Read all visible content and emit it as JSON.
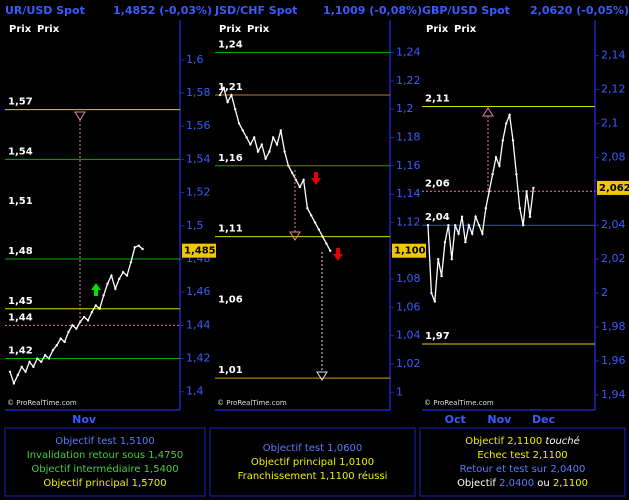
{
  "chart_data": [
    {
      "type": "line",
      "title": "UR/USD Spot",
      "subtitle": "1,4852 (-0,03%)",
      "col_labels": [
        "Prix",
        "Prix"
      ],
      "watermark": "© ProRealTime.com",
      "categories": [
        null,
        null,
        null,
        null,
        null,
        null,
        null,
        null,
        null,
        null,
        null,
        null,
        null,
        null,
        null,
        null,
        null,
        null,
        null,
        "Nov",
        null,
        null,
        null,
        null,
        null,
        null,
        null,
        null,
        null,
        null,
        null,
        null,
        null,
        null,
        null
      ],
      "series": [
        {
          "color": "#ffffff",
          "values": [
            1.412,
            1.405,
            1.41,
            1.415,
            1.412,
            1.418,
            1.415,
            1.42,
            1.418,
            1.422,
            1.42,
            1.425,
            1.428,
            1.432,
            1.43,
            1.436,
            1.44,
            1.438,
            1.442,
            1.445,
            1.443,
            1.448,
            1.452,
            1.45,
            1.458,
            1.465,
            1.47,
            1.462,
            1.468,
            1.472,
            1.47,
            1.478,
            1.487,
            1.488,
            1.486
          ]
        }
      ],
      "ylim": [
        1.392,
        1.624
      ],
      "yticks": [
        {
          "value": 1.4,
          "label": "1,4"
        },
        {
          "value": 1.42,
          "label": "1,42"
        },
        {
          "value": 1.44,
          "label": "1,44"
        },
        {
          "value": 1.46,
          "label": "1,46"
        },
        {
          "value": 1.48,
          "label": "1,48"
        },
        {
          "value": 1.5,
          "label": "1,5"
        },
        {
          "value": 1.52,
          "label": "1,52"
        },
        {
          "value": 1.54,
          "label": "1,54"
        },
        {
          "value": 1.56,
          "label": "1,56"
        },
        {
          "value": 1.58,
          "label": "1,58"
        },
        {
          "value": 1.6,
          "label": "1,6"
        }
      ],
      "levels": [
        {
          "value": 1.57,
          "label": "1,57",
          "color": "#d8d800"
        },
        {
          "value": 1.54,
          "label": "1,54",
          "color": "#00b000"
        },
        {
          "value": 1.51,
          "label": "1,51"
        },
        {
          "value": 1.48,
          "label": "1,48",
          "color": "#00b000"
        },
        {
          "value": 1.45,
          "label": "1,45",
          "color": "#d8d800"
        },
        {
          "value": 1.44,
          "label": "1,44",
          "color": "#e080b0",
          "dash": true
        },
        {
          "value": 1.42,
          "label": "1,42",
          "color": "#00b000"
        }
      ],
      "last": {
        "value": 1.485,
        "label": "1,485"
      },
      "notes": [
        [
          {
            "text": "Objectif test 1,5100",
            "color": "#5a7aff"
          }
        ],
        [
          {
            "text": "Invalidation retour sous 1,4750",
            "color": "#40d040"
          }
        ],
        [
          {
            "text": "Objectif intermédiaire 1,5400",
            "color": "#40d040"
          }
        ],
        [
          {
            "text": "Objectif principal 1,5700",
            "color": "#f0f000"
          }
        ]
      ]
    },
    {
      "type": "line",
      "title": "JSD/CHF Spot",
      "subtitle": "1,1009 (-0,08%)",
      "col_labels": [
        "Prix",
        "Prix"
      ],
      "watermark": "© ProRealTime.com",
      "categories": [
        null,
        null,
        null,
        null,
        null,
        null,
        null,
        null,
        null,
        null,
        null,
        null,
        null,
        null,
        null,
        null,
        null,
        null,
        null,
        null,
        null,
        null,
        null,
        null,
        null,
        null,
        null,
        null,
        null,
        null
      ],
      "series": [
        {
          "color": "#ffffff",
          "values": [
            1.21,
            1.215,
            1.205,
            1.21,
            1.2,
            1.19,
            1.185,
            1.18,
            1.175,
            1.18,
            1.17,
            1.175,
            1.165,
            1.17,
            1.18,
            1.175,
            1.185,
            1.17,
            1.16,
            1.155,
            1.15,
            1.145,
            1.15,
            1.13,
            1.125,
            1.12,
            1.115,
            1.11,
            1.105,
            1.1
          ]
        }
      ],
      "ylim": [
        0.991,
        1.263
      ],
      "yticks": [
        1,
        {
          "value": 1.02,
          "label": "1,02"
        },
        {
          "value": 1.04,
          "label": "1,04"
        },
        {
          "value": 1.06,
          "label": "1,06"
        },
        {
          "value": 1.08,
          "label": "1,08"
        },
        {
          "value": 1.1,
          "label": "1,1"
        },
        {
          "value": 1.12,
          "label": "1,12"
        },
        {
          "value": 1.14,
          "label": "1,14"
        },
        {
          "value": 1.16,
          "label": "1,16"
        },
        {
          "value": 1.18,
          "label": "1,18"
        },
        {
          "value": 1.2,
          "label": "1,2"
        },
        {
          "value": 1.22,
          "label": "1,22"
        },
        {
          "value": 1.24,
          "label": "1,24"
        }
      ],
      "levels": [
        {
          "value": 1.24,
          "label": "1,24",
          "color": "#00b000"
        },
        {
          "value": 1.21,
          "label": "1,21",
          "color": "#c87830"
        },
        {
          "value": 1.16,
          "label": "1,16",
          "color": "#00b000"
        },
        {
          "value": 1.11,
          "label": "1,11",
          "color": "#d8d800"
        },
        {
          "value": 1.06,
          "label": "1,06"
        },
        {
          "value": 1.01,
          "label": "1,01",
          "color": "#d8a000"
        }
      ],
      "last": {
        "value": 1.1,
        "label": "1,100"
      },
      "notes": [
        [
          {
            "text": "Objectif test 1,0600",
            "color": "#5a7aff"
          }
        ],
        [
          {
            "text": "Objectif principal 1,0100",
            "color": "#f0f000"
          }
        ],
        [
          {
            "text": "Franchissement 1,1100 réussi",
            "color": "#f0f000"
          }
        ]
      ]
    },
    {
      "type": "line",
      "title": "GBP/USD Spot",
      "subtitle": "2,0620 (-0,05%)",
      "col_labels": [
        "Prix",
        "Prix"
      ],
      "watermark": "© ProRealTime.com",
      "categories": [
        null,
        null,
        null,
        null,
        null,
        null,
        null,
        null,
        "Oct",
        null,
        null,
        null,
        null,
        null,
        null,
        null,
        null,
        null,
        null,
        null,
        null,
        "Nov",
        null,
        null,
        null,
        null,
        null,
        null,
        null,
        null,
        null,
        null,
        null,
        null,
        "Dec",
        null,
        null,
        null,
        null,
        null,
        null,
        null,
        null,
        null,
        null
      ],
      "series": [
        {
          "color": "#ffffff",
          "values": [
            2.04,
            2.0,
            1.995,
            2.02,
            2.01,
            2.03,
            2.04,
            2.02,
            2.04,
            2.035,
            2.045,
            2.03,
            2.04,
            2.035,
            2.045,
            2.04,
            2.035,
            2.05,
            2.06,
            2.07,
            2.08,
            2.075,
            2.09,
            2.1,
            2.105,
            2.09,
            2.07,
            2.05,
            2.04,
            2.06,
            2.045,
            2.062,
            null,
            null,
            null,
            null,
            null,
            null,
            null,
            null,
            null,
            null,
            null,
            null,
            null
          ]
        }
      ],
      "ylim": [
        1.934,
        2.161
      ],
      "yticks": [
        {
          "value": 1.94,
          "label": "1,94"
        },
        {
          "value": 1.96,
          "label": "1,96"
        },
        {
          "value": 1.98,
          "label": "1,98"
        },
        2,
        {
          "value": 2.02,
          "label": "2,02"
        },
        {
          "value": 2.04,
          "label": "2,04"
        },
        {
          "value": 2.06,
          "label": "2,06"
        },
        {
          "value": 2.08,
          "label": "2,08"
        },
        {
          "value": 2.1,
          "label": "2,1"
        },
        {
          "value": 2.12,
          "label": "2,12"
        },
        {
          "value": 2.14,
          "label": "2,14"
        }
      ],
      "levels": [
        {
          "value": 2.11,
          "label": "2,11",
          "color": "#d8d800"
        },
        {
          "value": 2.06,
          "label": "2,06",
          "color": "#e080b0",
          "dash": true
        },
        {
          "value": 2.04,
          "label": "2,04",
          "color": "#4040ff"
        },
        {
          "value": 1.97,
          "label": "1,97",
          "color": "#d8d800"
        }
      ],
      "last": {
        "value": 2.062,
        "label": "2,062"
      },
      "notes": [
        [
          {
            "text": "Objectif 2,1100 ",
            "color": "#f0f000"
          },
          {
            "text": "touché",
            "color": "#ffffff",
            "italic": true
          }
        ],
        [
          {
            "text": "Echec test 2,1100",
            "color": "#f0f000"
          }
        ],
        [
          {
            "text": "Retour et test sur 2,0400",
            "color": "#5a7aff"
          }
        ],
        [
          {
            "text": "Objectif ",
            "color": "#ffffff"
          },
          {
            "text": "2,0400",
            "color": "#5a7aff"
          },
          {
            "text": " ou ",
            "color": "#ffffff"
          },
          {
            "text": "2,1100",
            "color": "#f0f000"
          }
        ]
      ]
    }
  ]
}
